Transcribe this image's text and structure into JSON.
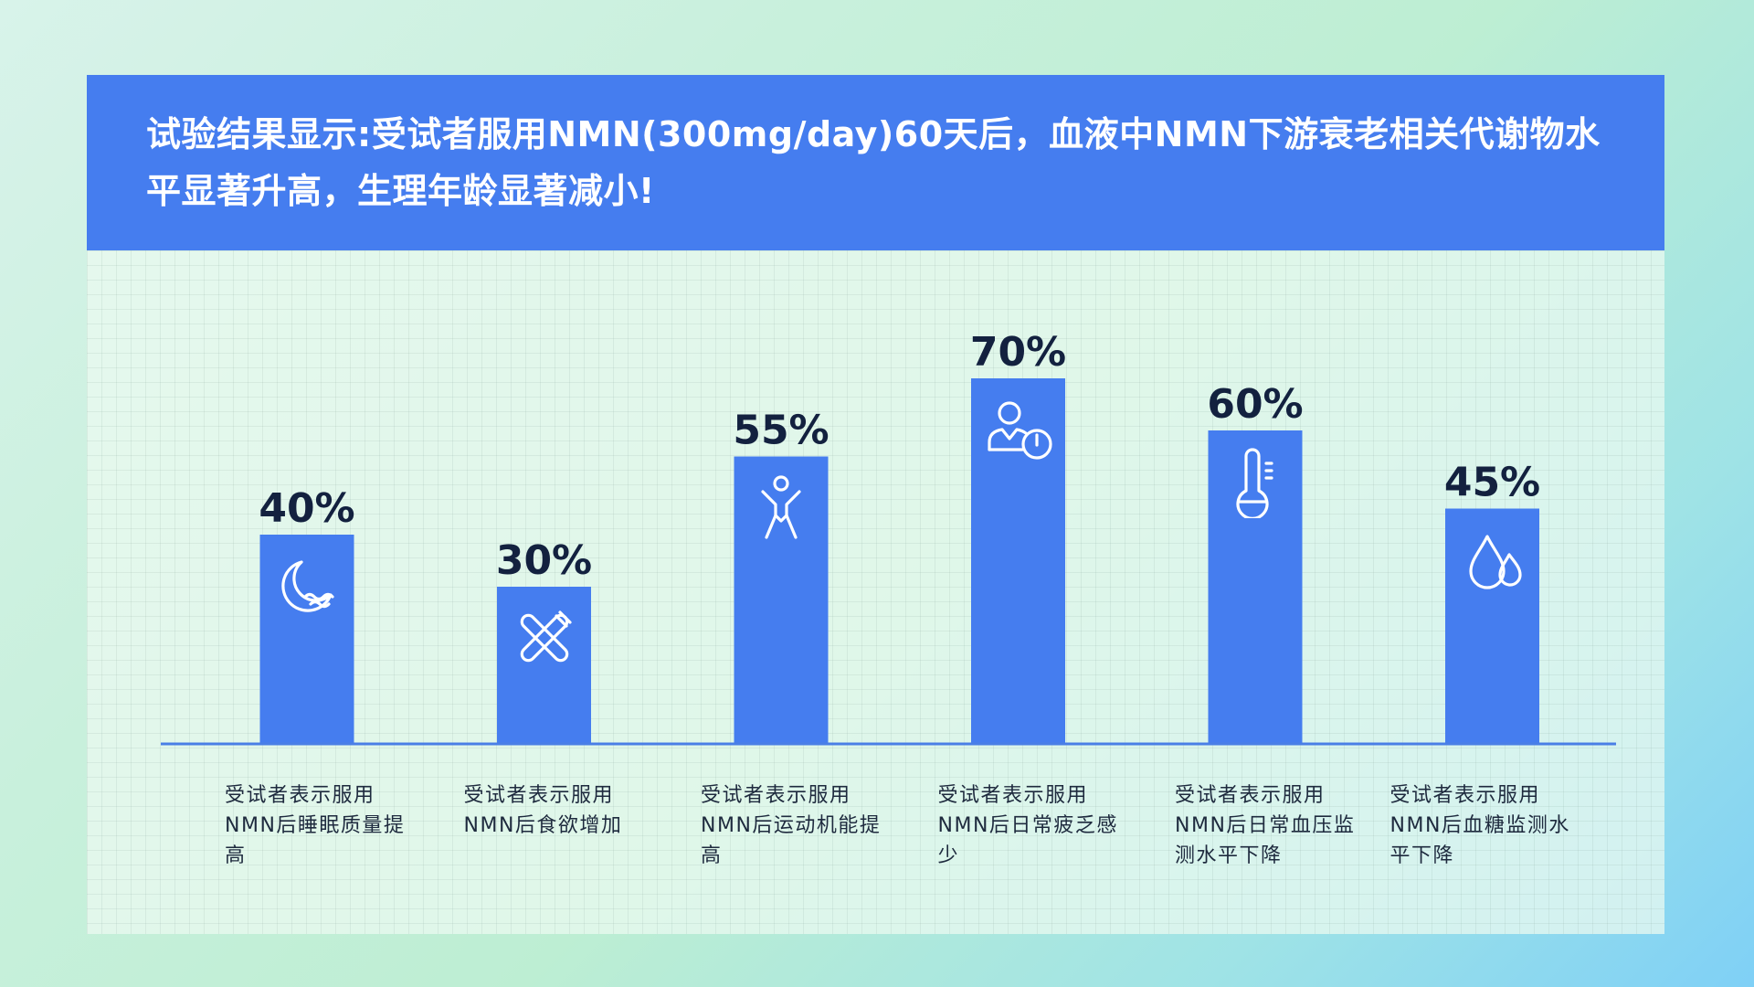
{
  "header": {
    "title": "试验结果显示:受试者服用NMN(300mg/day)60天后，血液中NMN下游衰老相关代谢物水平显著升高，生理年龄显著减小!"
  },
  "colors": {
    "bar": "#457def",
    "header": "#457def",
    "axis": "#4a7fe6",
    "value_text": "#13213f"
  },
  "chart_data": {
    "type": "bar",
    "categories": [
      "受试者表示服用NMN后睡眠质量提高",
      "受试者表示服用NMN后食欲增加",
      "受试者表示服用NMN后运动机能提高",
      "受试者表示服用NMN后日常疲乏感少",
      "受试者表示服用NMN后日常血压监测水平下降",
      "受试者表示服用NMN后血糖监测水平下降"
    ],
    "values": [
      40,
      30,
      55,
      70,
      60,
      45
    ],
    "value_labels": [
      "40%",
      "30%",
      "55%",
      "70%",
      "60%",
      "45%"
    ],
    "unit": "%",
    "icons": [
      "moon-icon",
      "no-utensils-icon",
      "exercise-person-icon",
      "person-clock-icon",
      "thermometer-icon",
      "water-drop-icon"
    ],
    "ylim": [
      0,
      100
    ],
    "grid": true,
    "legend": "none"
  }
}
